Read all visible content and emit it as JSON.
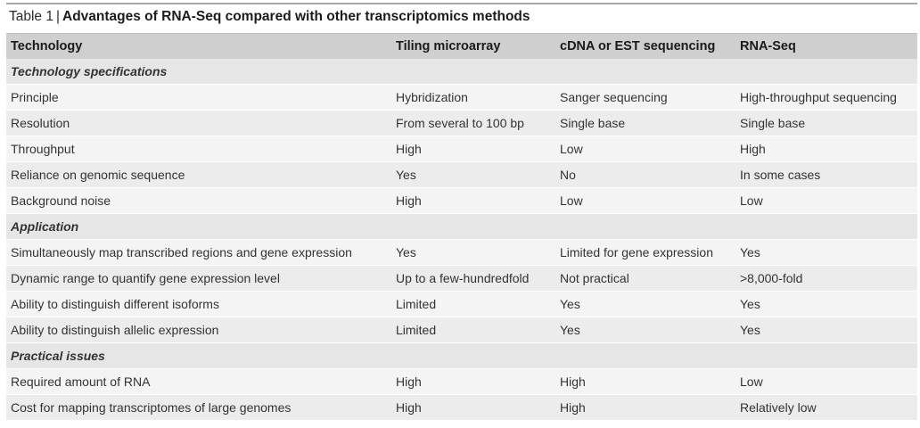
{
  "caption": {
    "label": "Table 1",
    "separator": "|",
    "title": "Advantages of RNA-Seq compared with other transcriptomics methods"
  },
  "headers": [
    "Technology",
    "Tiling microarray",
    "cDNA or EST sequencing",
    "RNA-Seq"
  ],
  "sections": [
    {
      "title": "Technology specifications",
      "rows": [
        [
          "Principle",
          "Hybridization",
          "Sanger sequencing",
          "High-throughput sequencing"
        ],
        [
          "Resolution",
          "From several to 100 bp",
          "Single base",
          "Single base"
        ],
        [
          "Throughput",
          "High",
          "Low",
          "High"
        ],
        [
          "Reliance on genomic sequence",
          "Yes",
          "No",
          "In some cases"
        ],
        [
          "Background noise",
          "High",
          "Low",
          "Low"
        ]
      ]
    },
    {
      "title": "Application",
      "rows": [
        [
          "Simultaneously map transcribed regions and gene expression",
          "Yes",
          "Limited for gene expression",
          "Yes"
        ],
        [
          "Dynamic range to quantify gene expression level",
          "Up to a few-hundredfold",
          "Not practical",
          ">8,000-fold"
        ],
        [
          "Ability to distinguish different isoforms",
          "Limited",
          "Yes",
          "Yes"
        ],
        [
          "Ability to distinguish allelic expression",
          "Limited",
          "Yes",
          "Yes"
        ]
      ]
    },
    {
      "title": "Practical issues",
      "rows": [
        [
          "Required amount of RNA",
          "High",
          "High",
          "Low"
        ],
        [
          "Cost for mapping transcriptomes of large genomes",
          "High",
          "High",
          "Relatively low"
        ]
      ]
    }
  ]
}
